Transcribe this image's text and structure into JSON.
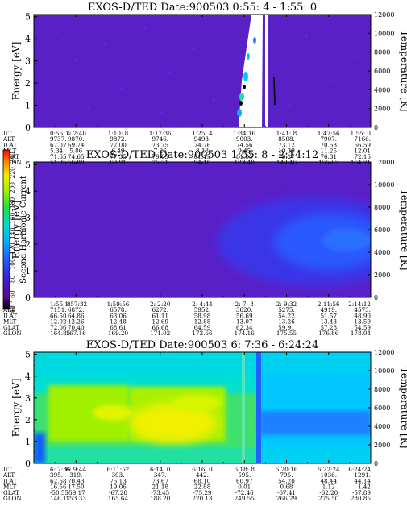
{
  "colorbar": {
    "label": "Second Harmonic Current",
    "ticks": [
      40,
      60,
      80,
      100,
      120,
      140,
      160,
      180,
      200,
      220,
      240
    ],
    "range": [
      40,
      250
    ],
    "stops": [
      "#000000",
      "#5a0b8f",
      "#3a1fd6",
      "#2060ff",
      "#00b8ff",
      "#00e0c0",
      "#20e040",
      "#a0f000",
      "#f0f000",
      "#ff8000",
      "#ff0000"
    ]
  },
  "row_labels": [
    "UT",
    "ALT",
    "ILAT",
    "MLT",
    "GLAT",
    "GLON"
  ],
  "chart_data": [
    {
      "type": "heatmap",
      "title": "EXOS-D/TED",
      "date_label": "Date:900503",
      "time_range": "0:55: 4 - 1:55: 0",
      "ylabel": "Energy [eV]",
      "ylabel_right": "Temperature [K]",
      "yticks": [
        0,
        1,
        2,
        3,
        4,
        5
      ],
      "yticks_right": [
        0,
        2000,
        4000,
        6000,
        8000,
        10000,
        12000
      ],
      "ylim": [
        0,
        5.1
      ],
      "ylim_right": [
        0,
        12000
      ],
      "columns": [
        {
          "UT": "0:55: 4",
          "ALT": "9737.",
          "ILAT": "67.07",
          "MLT": "5.34",
          "GLAT": "71.65",
          "GLON": "51.85"
        },
        {
          "UT": "1: 2:40",
          "ALT": "9870.",
          "ILAT": "69.74",
          "MLT": "5.86",
          "GLAT": "74.65",
          "GLON": "56.88"
        },
        {
          "UT": "1:10: 8",
          "ALT": "9872.",
          "ILAT": "72.00",
          "MLT": "6.49",
          "GLAT": "77.35",
          "GLON": "63.91"
        },
        {
          "UT": "1:17:36",
          "ALT": "9746.",
          "ILAT": "73.75",
          "MLT": "7.26",
          "GLAT": "79.65",
          "GLON": "75.71"
        },
        {
          "UT": "1:25: 4",
          "ALT": "9493.",
          "ILAT": "74.76",
          "MLT": "8.18",
          "GLAT": "81.15",
          "GLON": "94.10"
        },
        {
          "UT": "1:34:16",
          "ALT": "9003.",
          "ILAT": "74.56",
          "MLT": "9.45",
          "GLAT": "81.05",
          "GLON": "123.40"
        },
        {
          "UT": "1:41: 8",
          "ALT": "8508.",
          "ILAT": "73.12",
          "MLT": "10.39",
          "GLAT": "79.27",
          "GLON": "142.46"
        },
        {
          "UT": "1:47:56",
          "ALT": "7907.",
          "ILAT": "70.53",
          "MLT": "11.25",
          "GLAT": "76.31",
          "GLON": "155.67"
        },
        {
          "UT": "1:55: 0",
          "ALT": "7166.",
          "ILAT": "66.59",
          "MLT": "12.01",
          "GLAT": "72.15",
          "GLON": "164.71"
        }
      ]
    },
    {
      "type": "heatmap",
      "title": "EXOS-D/TED",
      "date_label": "Date:900503",
      "time_range": "1:55: 8 - 2:14:12",
      "ylabel": "Energy [eV]",
      "ylabel_right": "Temperature [K]",
      "yticks": [
        0,
        1,
        2,
        3,
        4,
        5
      ],
      "yticks_right": [
        0,
        2000,
        4000,
        6000,
        8000,
        10000,
        12000
      ],
      "ylim": [
        0,
        5.1
      ],
      "ylim_right": [
        0,
        12000
      ],
      "columns": [
        {
          "UT": "1:55: 8",
          "ALT": "7151.",
          "ILAT": "66.50",
          "MLT": "12.02",
          "GLAT": "72.06",
          "GLON": "164.85"
        },
        {
          "UT": "1:57:32",
          "ALT": "6872.",
          "ILAT": "64.86",
          "MLT": "12.26",
          "GLAT": "70.40",
          "GLON": "167.16"
        },
        {
          "UT": "1:59:56",
          "ALT": "6578.",
          "ILAT": "63.06",
          "MLT": "12.48",
          "GLAT": "68.61",
          "GLON": "169.20"
        },
        {
          "UT": "2: 2:20",
          "ALT": "6272.",
          "ILAT": "61.11",
          "MLT": "12.69",
          "GLAT": "66.68",
          "GLON": "171.02"
        },
        {
          "UT": "2: 4:44",
          "ALT": "5952.",
          "ILAT": "58.98",
          "MLT": "12.88",
          "GLAT": "64.59",
          "GLON": "172.66"
        },
        {
          "UT": "2: 7: 8",
          "ALT": "3620.",
          "ILAT": "56.69",
          "MLT": "13.07",
          "GLAT": "62.34",
          "GLON": "174.16"
        },
        {
          "UT": "2: 9:32",
          "ALT": "5275.",
          "ILAT": "54.22",
          "MLT": "13.26",
          "GLAT": "59.91",
          "GLON": "175.55"
        },
        {
          "UT": "2:11:56",
          "ALT": "4919.",
          "ILAT": "51.57",
          "MLT": "13.43",
          "GLAT": "57.28",
          "GLON": "176.86"
        },
        {
          "UT": "2:14:12",
          "ALT": "4573.",
          "ILAT": "48.90",
          "MLT": "13.59",
          "GLAT": "54.59",
          "GLON": "178.04"
        }
      ]
    },
    {
      "type": "heatmap",
      "title": "EXOS-D/TED",
      "date_label": "Date:900503",
      "time_range": "6: 7:36 - 6:24:24",
      "ylabel": "Energy [eV]",
      "ylabel_right": "Temperature [K]",
      "yticks": [
        0,
        1,
        2,
        3,
        4,
        5
      ],
      "yticks_right": [
        0,
        2000,
        4000,
        6000,
        8000,
        10000,
        12000
      ],
      "ylim": [
        0,
        5.1
      ],
      "ylim_right": [
        0,
        12000
      ],
      "columns": [
        {
          "UT": "6: 7:36",
          "ALT": "395.",
          "ILAT": "62.58",
          "MLT": "16.56",
          "GLAT": "-50.55",
          "GLON": "146.17"
        },
        {
          "UT": "6: 9:44",
          "ALT": "319.",
          "ILAT": "70.43",
          "MLT": "17.50",
          "GLAT": "-59.17",
          "GLON": "153.33"
        },
        {
          "UT": "6:11:52",
          "ALT": "303.",
          "ILAT": "75.13",
          "MLT": "19.06",
          "GLAT": "-67.28",
          "GLON": "165.64"
        },
        {
          "UT": "6:14: 0",
          "ALT": "347.",
          "ILAT": "73.67",
          "MLT": "21.18",
          "GLAT": "-73.45",
          "GLON": "188.20"
        },
        {
          "UT": "6:16: 0",
          "ALT": "442.",
          "ILAT": "68.10",
          "MLT": "22.88",
          "GLAT": "-75.29",
          "GLON": "220.13"
        },
        {
          "UT": "6:18: 8",
          "ALT": "595.",
          "ILAT": "60.97",
          "MLT": "0.01",
          "GLAT": "-72.46",
          "GLON": "249.55"
        },
        {
          "UT": "6:20:16",
          "ALT": "795.",
          "ILAT": "54.20",
          "MLT": "0.68",
          "GLAT": "-67.41",
          "GLON": "266.29"
        },
        {
          "UT": "6:22:24",
          "ALT": "1036.",
          "ILAT": "48.44",
          "MLT": "1.12",
          "GLAT": "-62.20",
          "GLON": "275.50"
        },
        {
          "UT": "6:24:24",
          "ALT": "1291.",
          "ILAT": "44.14",
          "MLT": "1.42",
          "GLAT": "-57.89",
          "GLON": "280.85"
        }
      ]
    }
  ]
}
